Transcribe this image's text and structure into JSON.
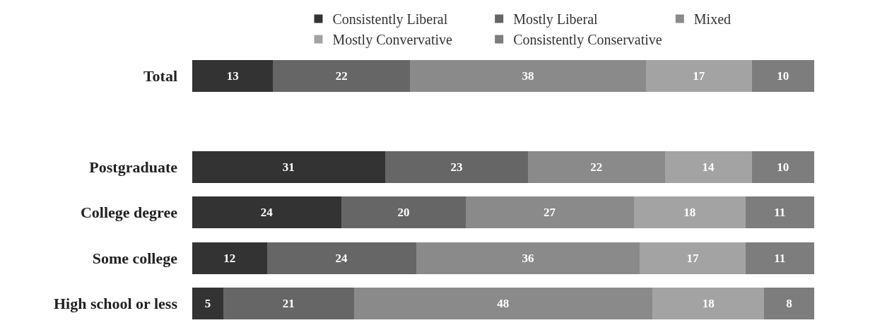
{
  "chart_data": {
    "type": "bar",
    "orientation": "horizontal",
    "stacked": true,
    "data_labels": true,
    "legend": "top",
    "categories": [
      "Total",
      null,
      "Postgraduate",
      "College degree",
      "Some college",
      "High school or less"
    ],
    "series": [
      {
        "name": "Consistently Liberal",
        "color": "#333333",
        "values": [
          13,
          null,
          31,
          24,
          12,
          5
        ]
      },
      {
        "name": "Mostly Liberal",
        "color": "#666666",
        "values": [
          22,
          null,
          23,
          20,
          24,
          21
        ]
      },
      {
        "name": "Mixed",
        "color": "#8a8a8a",
        "values": [
          38,
          null,
          22,
          27,
          36,
          48
        ]
      },
      {
        "name": "Mostly Convervative",
        "color": "#a3a3a3",
        "values": [
          17,
          null,
          14,
          18,
          17,
          18
        ]
      },
      {
        "name": "Consistently Conservative",
        "color": "#7d7d7d",
        "values": [
          10,
          null,
          10,
          11,
          11,
          8
        ]
      }
    ]
  }
}
